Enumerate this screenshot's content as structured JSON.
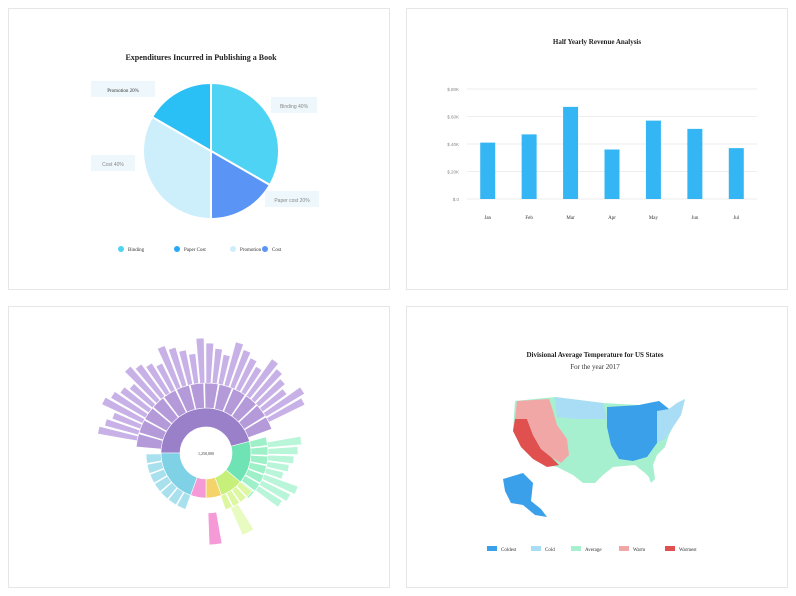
{
  "pie": {
    "title": "Expenditures Incurred in Publishing a Book",
    "labels": {
      "promotion": "Promotion 20%",
      "binding": "Binding 40%",
      "cost": "Cost 40%",
      "paper": "Paper cost 20%"
    },
    "legend": [
      "Binding",
      "Paper Cost",
      "Promotion",
      "Cost"
    ],
    "colors": [
      "#4fd3f5",
      "#2aa8f7",
      "#cdeffc",
      "#5a95f5"
    ]
  },
  "bar": {
    "title": "Half Yearly Revenue Analysis",
    "yticks": [
      "$.0",
      "$.20K",
      "$.40K",
      "$.60K",
      "$.80K"
    ]
  },
  "chart_data": [
    {
      "type": "pie",
      "title": "Expenditures Incurred in Publishing a Book",
      "categories": [
        "Binding",
        "Paper Cost",
        "Cost",
        "Promotion"
      ],
      "values": [
        40,
        20,
        40,
        20
      ]
    },
    {
      "type": "bar",
      "title": "Half Yearly Revenue Analysis",
      "categories": [
        "Jan",
        "Feb",
        "Mar",
        "Apr",
        "May",
        "Jun",
        "Jul"
      ],
      "values": [
        41,
        47,
        67,
        36,
        57,
        51,
        37
      ],
      "ylim": [
        0,
        80
      ]
    }
  ],
  "sunburst": {
    "center_label": "1,250,000"
  },
  "map": {
    "title": "Divisional Average Temperature for US States",
    "subtitle": "For the year 2017",
    "legend": [
      "Coldest",
      "Cold",
      "Average",
      "Warm",
      "Warmest"
    ],
    "colors": [
      "#3aa0ea",
      "#a9ddf5",
      "#a7f0cf",
      "#f2a7a7",
      "#e0504f"
    ]
  }
}
